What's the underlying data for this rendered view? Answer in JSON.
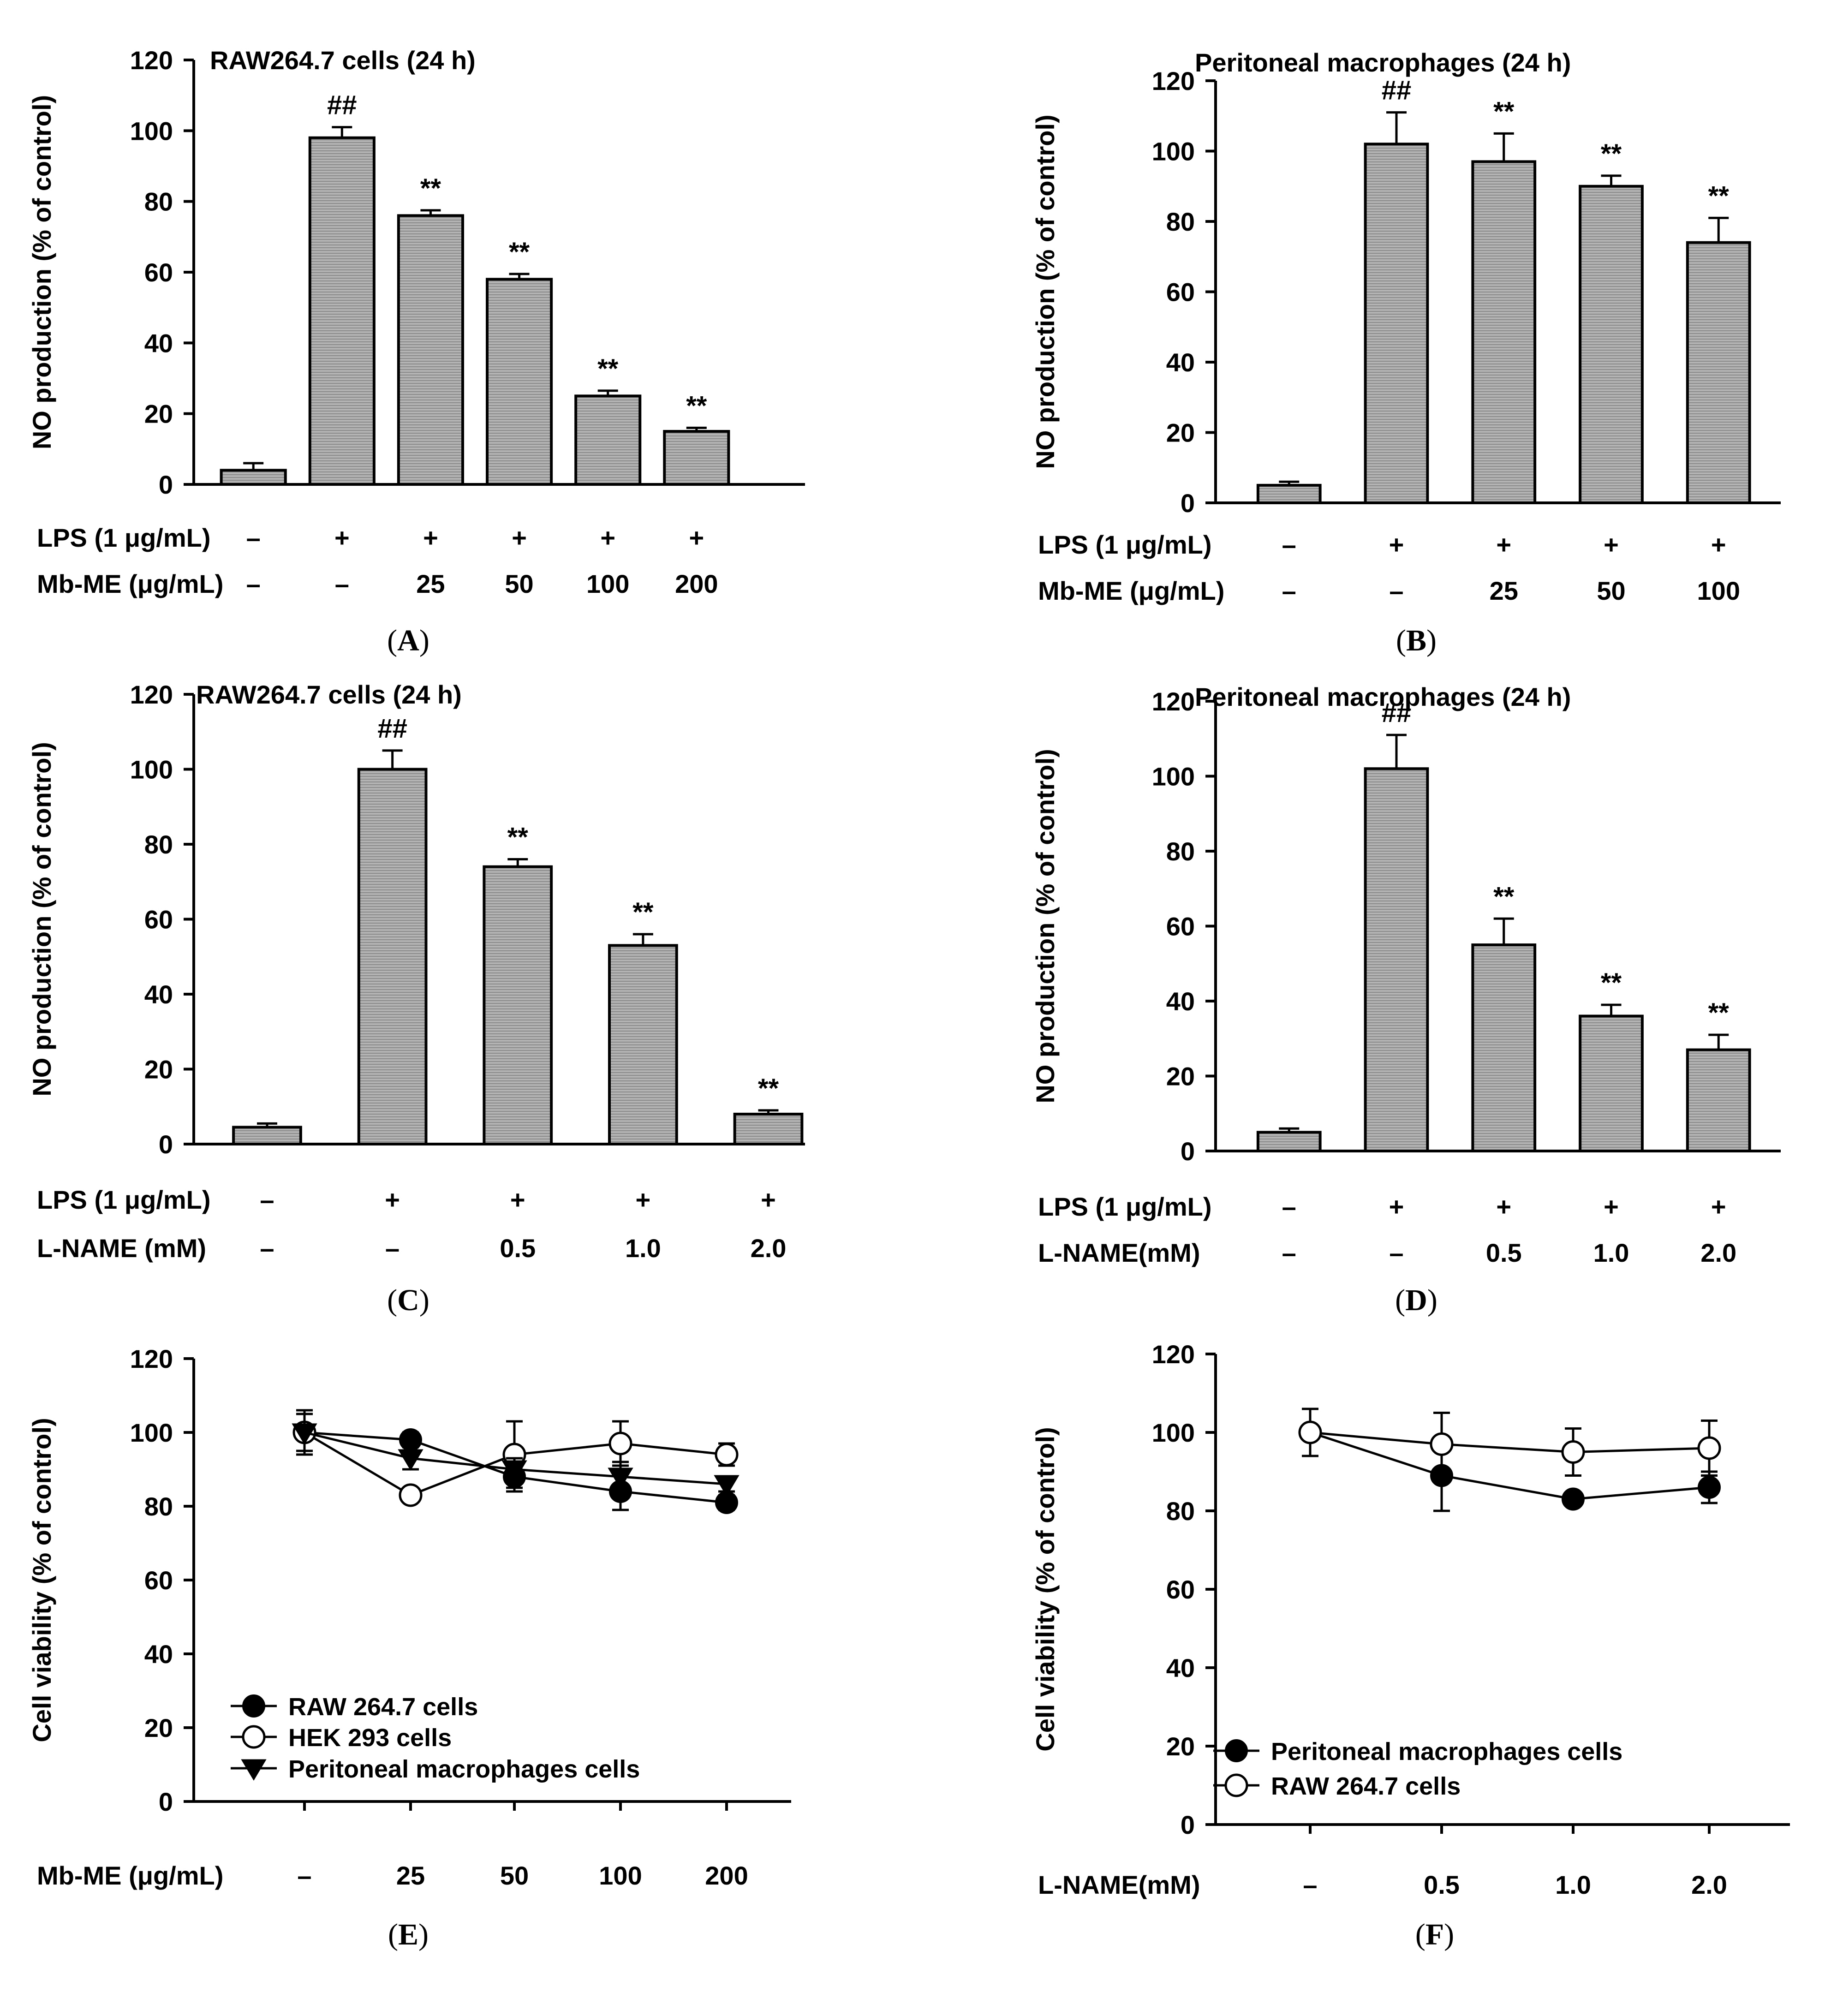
{
  "chart_data": [
    {
      "id": "A",
      "type": "bar",
      "caption": "A",
      "title": "RAW264.7 cells (24 h)",
      "ylabel": "NO production (% of control)",
      "ylim": [
        0,
        120
      ],
      "yticks": [
        "0",
        "20",
        "40",
        "60",
        "80",
        "100",
        "120"
      ],
      "values": [
        4,
        98,
        76,
        58,
        25,
        15
      ],
      "errors": [
        2,
        3,
        1.5,
        1.5,
        1.5,
        1
      ],
      "marks": [
        "",
        "##",
        "**",
        "**",
        "**",
        "**"
      ],
      "conditions": [
        {
          "label": "LPS (1 μg/mL)",
          "values": [
            "–",
            "+",
            "+",
            "+",
            "+",
            "+"
          ]
        },
        {
          "label": "Mb-ME (μg/mL)",
          "values": [
            "–",
            "–",
            "25",
            "50",
            "100",
            "200"
          ]
        }
      ]
    },
    {
      "id": "B",
      "type": "bar",
      "caption": "B",
      "title": "Peritoneal  macrophages (24 h)",
      "ylabel": "NO production (% of control)",
      "ylim": [
        0,
        120
      ],
      "yticks": [
        "0",
        "20",
        "40",
        "60",
        "80",
        "100",
        "120"
      ],
      "values": [
        5,
        102,
        97,
        90,
        74
      ],
      "errors": [
        1,
        9,
        8,
        3,
        7
      ],
      "marks": [
        "",
        "##",
        "**",
        "**",
        "**"
      ],
      "conditions": [
        {
          "label": "LPS (1 μg/mL)",
          "values": [
            "–",
            "+",
            "+",
            "+",
            "+"
          ]
        },
        {
          "label": "Mb-ME (μg/mL)",
          "values": [
            "–",
            "–",
            "25",
            "50",
            "100"
          ]
        }
      ]
    },
    {
      "id": "C",
      "type": "bar",
      "caption": "C",
      "title": "RAW264.7 cells (24 h)",
      "ylabel": "NO production (% of control)",
      "ylim": [
        0,
        120
      ],
      "yticks": [
        "0",
        "20",
        "40",
        "60",
        "80",
        "100",
        "120"
      ],
      "values": [
        4.5,
        100,
        74,
        53,
        8
      ],
      "errors": [
        1,
        5,
        2,
        3,
        1
      ],
      "marks": [
        "",
        "##",
        "**",
        "**",
        "**"
      ],
      "conditions": [
        {
          "label": "LPS (1 μg/mL)",
          "values": [
            "–",
            "+",
            "+",
            "+",
            "+"
          ]
        },
        {
          "label": "L-NAME (mM)",
          "values": [
            "–",
            "–",
            "0.5",
            "1.0",
            "2.0"
          ]
        }
      ]
    },
    {
      "id": "D",
      "type": "bar",
      "caption": "D",
      "title": "Peritoneal  macrophages (24 h)",
      "ylabel": "NO production (% of control)",
      "ylim": [
        0,
        120
      ],
      "yticks": [
        "0",
        "20",
        "40",
        "60",
        "80",
        "100",
        "120"
      ],
      "values": [
        5,
        102,
        55,
        36,
        27
      ],
      "errors": [
        1,
        9,
        7,
        3,
        4
      ],
      "marks": [
        "",
        "##",
        "**",
        "**",
        "**"
      ],
      "conditions": [
        {
          "label": "LPS (1 μg/mL)",
          "values": [
            "–",
            "+",
            "+",
            "+",
            "+"
          ]
        },
        {
          "label": "L-NAME(mM)",
          "values": [
            "–",
            "–",
            "0.5",
            "1.0",
            "2.0"
          ]
        }
      ]
    },
    {
      "id": "E",
      "type": "line",
      "caption": "E",
      "ylabel": "Cell viability (% of control)",
      "ylim": [
        0,
        120
      ],
      "yticks": [
        "0",
        "20",
        "40",
        "60",
        "80",
        "100",
        "120"
      ],
      "xlabel": "Mb-ME (μg/mL)",
      "categories": [
        "–",
        "25",
        "50",
        "100",
        "200"
      ],
      "legend_position": "bottom-left",
      "series": [
        {
          "name": "RAW 264.7 cells",
          "marker": "filled-circle",
          "values": [
            100,
            98,
            88,
            84,
            81
          ],
          "errors": [
            6,
            2,
            4,
            5,
            2
          ]
        },
        {
          "name": "HEK 293 cells",
          "marker": "open-circle",
          "values": [
            100,
            83,
            94,
            97,
            94
          ],
          "errors": [
            6,
            1,
            9,
            6,
            3
          ]
        },
        {
          "name": "Peritoneal macrophages cells",
          "marker": "filled-triangle-down",
          "values": [
            100,
            93,
            90,
            88,
            86
          ],
          "errors": [
            5,
            3,
            3,
            4,
            2
          ]
        }
      ]
    },
    {
      "id": "F",
      "type": "line",
      "caption": "F",
      "ylabel": "Cell viability (% of control)",
      "ylim": [
        0,
        120
      ],
      "yticks": [
        "0",
        "20",
        "40",
        "60",
        "80",
        "100",
        "120"
      ],
      "xlabel": "L-NAME(mM)",
      "categories": [
        "–",
        "0.5",
        "1.0",
        "2.0"
      ],
      "legend_position": "bottom-left",
      "series": [
        {
          "name": "Peritoneal macrophages cells",
          "marker": "filled-circle",
          "values": [
            100,
            89,
            83,
            86
          ],
          "errors": [
            6,
            9,
            1,
            4
          ]
        },
        {
          "name": "RAW 264.7 cells",
          "marker": "open-circle",
          "values": [
            100,
            97,
            95,
            96
          ],
          "errors": [
            6,
            8,
            6,
            7
          ]
        }
      ]
    }
  ]
}
